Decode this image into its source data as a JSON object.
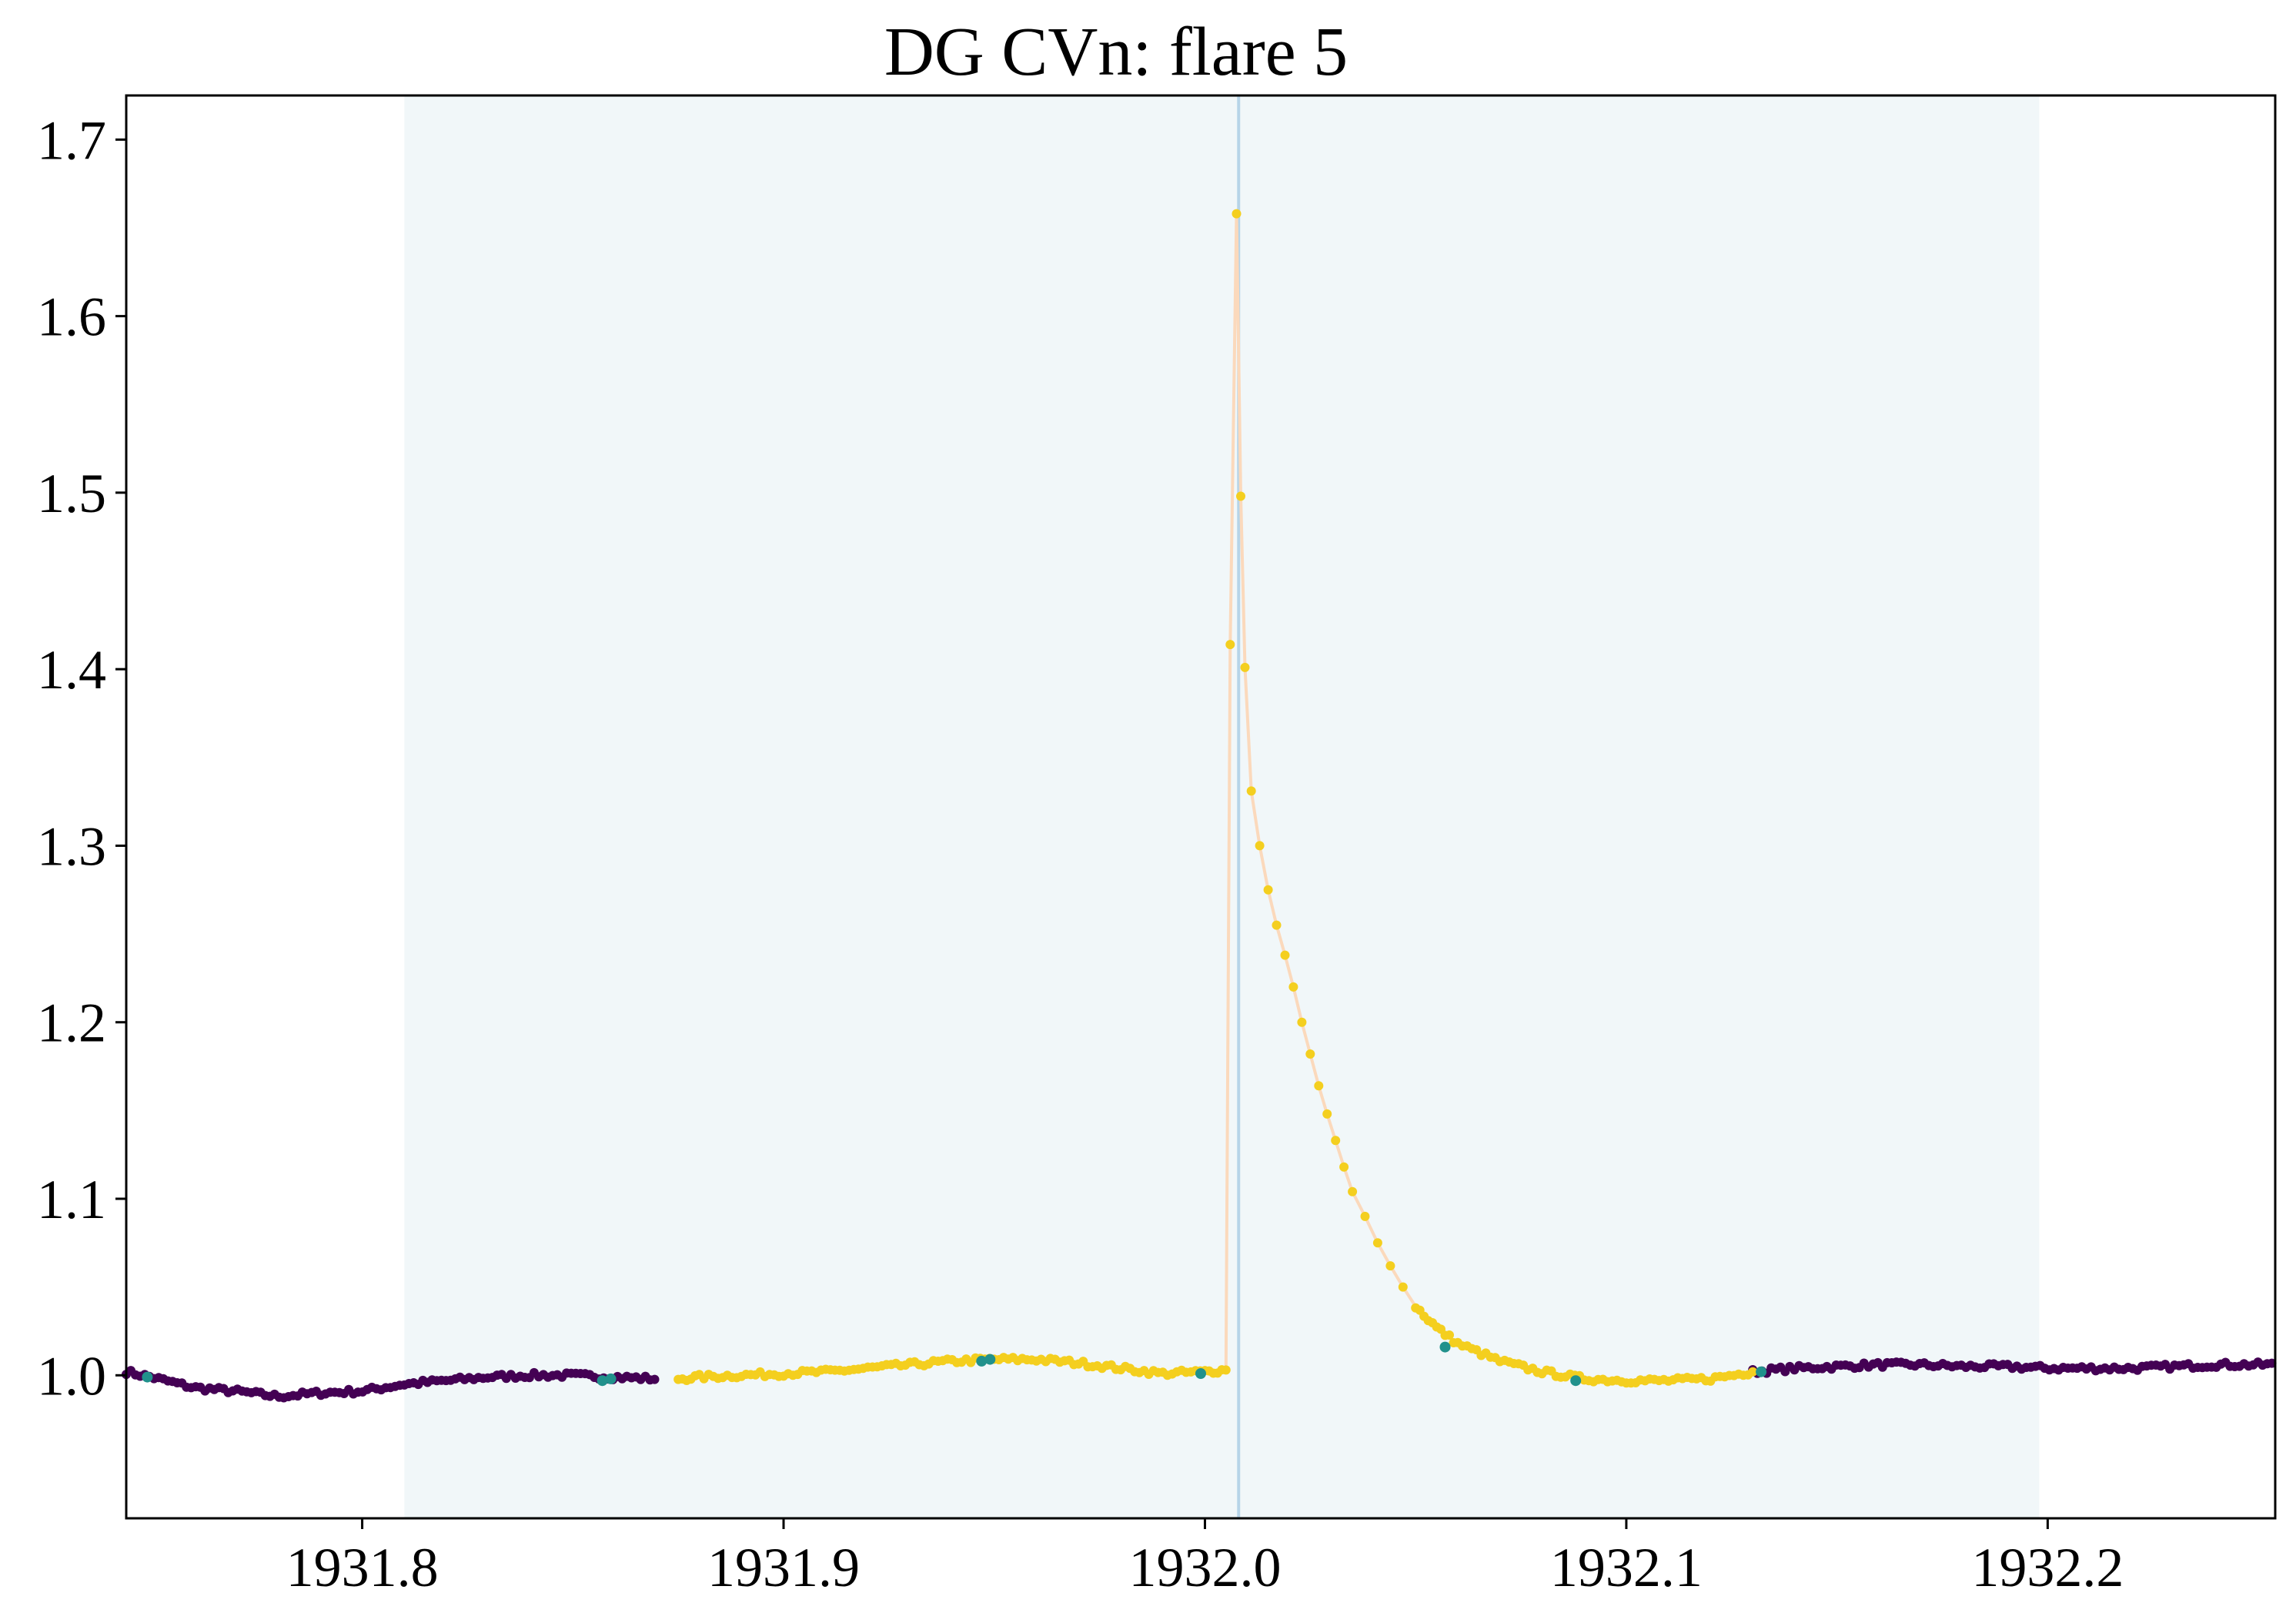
{
  "chart_data": {
    "type": "scatter",
    "title": "DG CVn: flare 5",
    "xlabel": "",
    "ylabel": "",
    "xlim": [
      1931.744,
      1932.254
    ],
    "ylim": [
      0.919,
      1.725
    ],
    "grid": false,
    "x_ticks": [
      "1931.8",
      "1931.9",
      "1932.0",
      "1932.1",
      "1932.2"
    ],
    "x_tick_values": [
      1931.8,
      1931.9,
      1932.0,
      1932.1,
      1932.2
    ],
    "y_ticks": [
      "1.0",
      "1.1",
      "1.2",
      "1.3",
      "1.4",
      "1.5",
      "1.6",
      "1.7"
    ],
    "y_tick_values": [
      1.0,
      1.1,
      1.2,
      1.3,
      1.4,
      1.5,
      1.6,
      1.7
    ],
    "shaded_region": {
      "x_start": 1931.81,
      "x_end": 1932.198,
      "color": "#f1f7f9"
    },
    "peak_marker_line": {
      "x": 1932.008,
      "color": "#b6d4e8"
    },
    "colors": {
      "background_class": "#440154",
      "transition_class": "#21918c",
      "flare_class": "#f4cf1f",
      "flare_line": "#fbd9bc",
      "axes": "#000000"
    },
    "baseline_left": {
      "x": [
        1931.744,
        1931.75,
        1931.76,
        1931.77,
        1931.78,
        1931.79,
        1931.8,
        1931.81,
        1931.82,
        1931.83,
        1931.84,
        1931.85,
        1931.86,
        1931.87
      ],
      "y": [
        1.002,
        0.999,
        0.993,
        0.991,
        0.988,
        0.99,
        0.991,
        0.995,
        0.997,
        0.999,
        1.0,
        1.0,
        0.999,
        0.998
      ],
      "class": "background"
    },
    "flare_series": {
      "x": [
        1931.875,
        1931.88,
        1931.89,
        1931.9,
        1931.91,
        1931.92,
        1931.93,
        1931.94,
        1931.95,
        1931.96,
        1931.97,
        1931.98,
        1931.99,
        1932.0,
        1932.005,
        1932.006,
        1932.0075,
        1932.0085,
        1932.0095,
        1932.011,
        1932.013,
        1932.015,
        1932.017,
        1932.019,
        1932.021,
        1932.023,
        1932.025,
        1932.027,
        1932.029,
        1932.031,
        1932.033,
        1932.035,
        1932.038,
        1932.041,
        1932.044,
        1932.047,
        1932.05,
        1932.055,
        1932.06,
        1932.07,
        1932.08,
        1932.09,
        1932.1,
        1932.11,
        1932.12,
        1932.13
      ],
      "y": [
        0.998,
        0.999,
        1.0,
        1.001,
        1.002,
        1.004,
        1.006,
        1.008,
        1.009,
        1.009,
        1.007,
        1.004,
        1.001,
        1.002,
        1.003,
        1.414,
        1.658,
        1.498,
        1.401,
        1.331,
        1.3,
        1.275,
        1.255,
        1.238,
        1.22,
        1.2,
        1.182,
        1.164,
        1.148,
        1.133,
        1.118,
        1.104,
        1.09,
        1.075,
        1.062,
        1.05,
        1.039,
        1.027,
        1.018,
        1.008,
        1.002,
        0.998,
        0.997,
        0.997,
        0.998,
        1.002
      ],
      "class": "flare"
    },
    "baseline_right": {
      "x": [
        1932.13,
        1932.14,
        1932.15,
        1932.16,
        1932.17,
        1932.18,
        1932.19,
        1932.2,
        1932.21,
        1932.22,
        1932.23,
        1932.24,
        1932.254
      ],
      "y": [
        1.002,
        1.004,
        1.005,
        1.006,
        1.006,
        1.005,
        1.005,
        1.004,
        1.004,
        1.004,
        1.005,
        1.006,
        1.006
      ],
      "class": "background"
    },
    "transition_points": {
      "x": [
        1931.749,
        1931.857,
        1931.859,
        1931.947,
        1931.949,
        1931.999,
        1932.057,
        1932.088,
        1932.132
      ],
      "y": [
        0.999,
        0.997,
        0.998,
        1.008,
        1.009,
        1.001,
        1.016,
        0.997,
        1.002
      ]
    }
  }
}
